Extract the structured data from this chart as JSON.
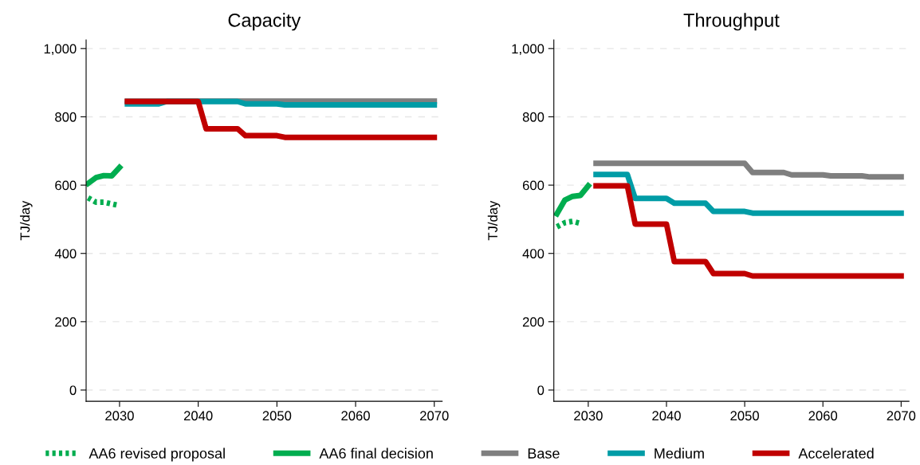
{
  "chart_data": [
    {
      "type": "line",
      "title": "Capacity",
      "ylabel": "TJ/day",
      "xlim": [
        2025.75,
        2071
      ],
      "xticks": [
        2030,
        2040,
        2050,
        2060,
        2070
      ],
      "ylim": [
        -33,
        1025
      ],
      "yticks": [
        0,
        200,
        400,
        600,
        800,
        {
          "value": 1000,
          "label": "1,000"
        }
      ],
      "grid": "y",
      "legend": "bottom",
      "series": [
        {
          "name": "AA6 revised proposal",
          "color": "#00ad4f",
          "line_style": "dotted",
          "x": [
            2026,
            2027,
            2028,
            2029,
            2030
          ],
          "values": [
            563,
            550,
            550,
            545,
            540
          ]
        },
        {
          "name": "AA6 final decision",
          "color": "#00ad4f",
          "line_style": "solid",
          "x": [
            2026,
            2027,
            2028,
            2029,
            2030
          ],
          "values": [
            605,
            622,
            628,
            627,
            652
          ]
        },
        {
          "name": "Base",
          "color": "#7f7f7f",
          "line_style": "solid",
          "x": [
            2031,
            2070
          ],
          "values": [
            846,
            846
          ]
        },
        {
          "name": "Medium",
          "color": "#009ca6",
          "line_style": "solid",
          "x": [
            2031,
            2035,
            2036,
            2045,
            2046,
            2050,
            2051,
            2070
          ],
          "values": [
            838,
            838,
            845,
            845,
            838,
            838,
            835,
            835
          ]
        },
        {
          "name": "Accelerated",
          "color": "#c00000",
          "line_style": "solid",
          "x": [
            2031,
            2040,
            2041,
            2045,
            2046,
            2050,
            2051,
            2070
          ],
          "values": [
            845,
            845,
            765,
            765,
            745,
            745,
            740,
            740
          ]
        }
      ]
    },
    {
      "type": "line",
      "title": "Throughput",
      "ylabel": "TJ/day",
      "xlim": [
        2025.6,
        2071
      ],
      "xticks": [
        2030,
        2040,
        2050,
        2060,
        2070
      ],
      "ylim": [
        -33,
        1025
      ],
      "yticks": [
        0,
        200,
        400,
        600,
        800,
        {
          "value": 1000,
          "label": "1,000"
        }
      ],
      "grid": "y",
      "legend": "bottom",
      "series": [
        {
          "name": "AA6 revised proposal",
          "color": "#00ad4f",
          "line_style": "dotted",
          "x": [
            2026,
            2027,
            2028,
            2029
          ],
          "values": [
            478,
            490,
            494,
            488
          ]
        },
        {
          "name": "AA6 final decision",
          "color": "#00ad4f",
          "line_style": "solid",
          "x": [
            2026,
            2027,
            2028,
            2029,
            2030
          ],
          "values": [
            516,
            556,
            567,
            570,
            598
          ]
        },
        {
          "name": "Base",
          "color": "#7f7f7f",
          "line_style": "solid",
          "x": [
            2031,
            2050,
            2051,
            2055,
            2056,
            2060,
            2061,
            2065,
            2066,
            2070
          ],
          "values": [
            664,
            664,
            637,
            637,
            630,
            630,
            627,
            627,
            624,
            624
          ]
        },
        {
          "name": "Medium",
          "color": "#009ca6",
          "line_style": "solid",
          "x": [
            2031,
            2035,
            2036,
            2040,
            2041,
            2045,
            2046,
            2050,
            2051,
            2070
          ],
          "values": [
            631,
            631,
            561,
            561,
            547,
            547,
            523,
            523,
            518,
            518
          ]
        },
        {
          "name": "Accelerated",
          "color": "#c00000",
          "line_style": "solid",
          "x": [
            2031,
            2035,
            2036,
            2040,
            2041,
            2045,
            2046,
            2050,
            2051,
            2070
          ],
          "values": [
            598,
            598,
            486,
            486,
            376,
            376,
            341,
            341,
            334,
            334
          ]
        }
      ]
    }
  ]
}
